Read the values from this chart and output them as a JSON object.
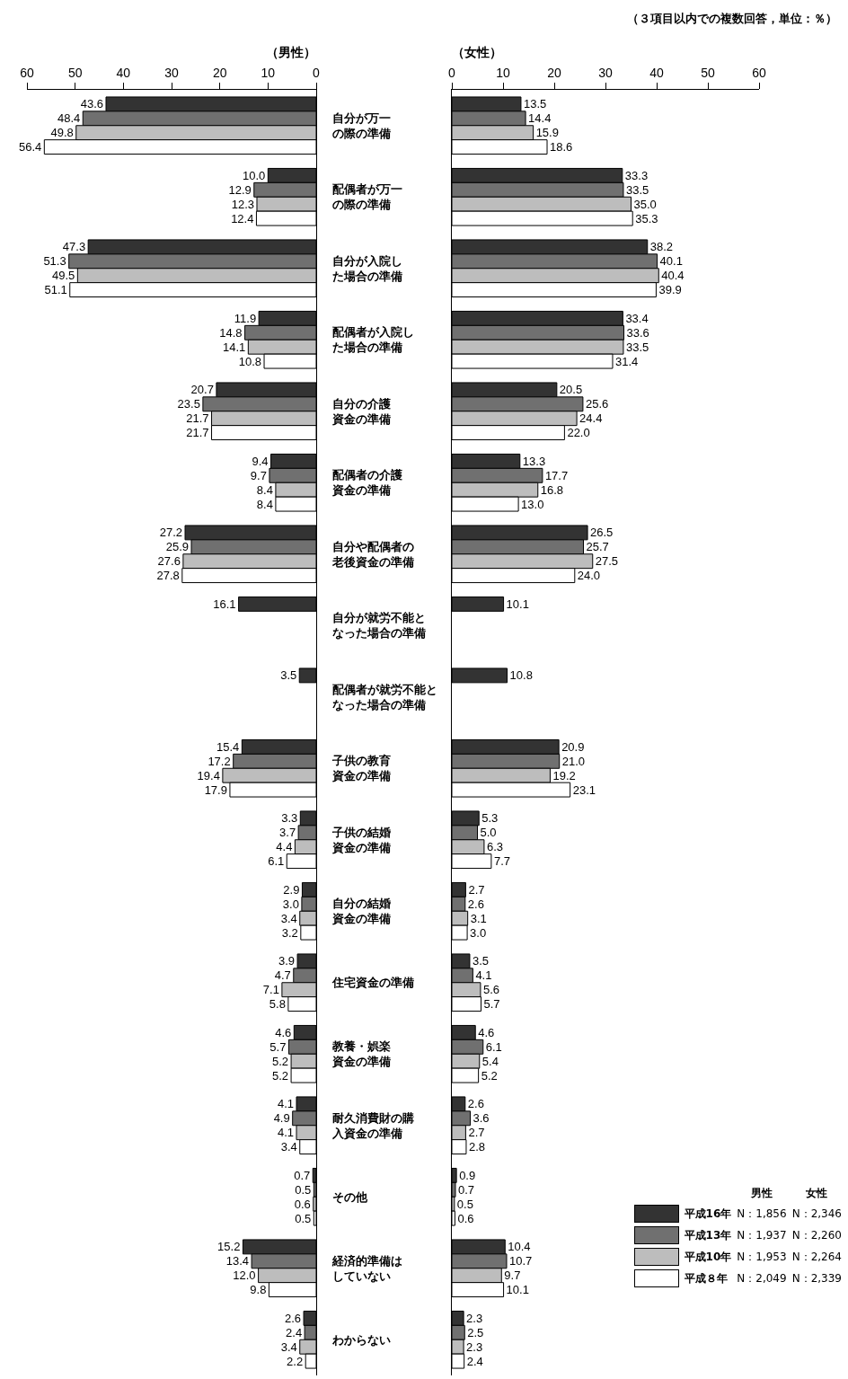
{
  "chart_data": [
    {
      "type": "bar",
      "orientation": "horizontal",
      "title": "（男性）",
      "xlim": [
        60,
        0
      ],
      "xticks": [
        60,
        50,
        40,
        30,
        20,
        10,
        0
      ],
      "grid": false,
      "legend": false,
      "categories": [
        "自分が万一の際の準備",
        "配偶者が万一の際の準備",
        "自分が入院した場合の準備",
        "配偶者が入院した場合の準備",
        "自分の介護資金の準備",
        "配偶者の介護資金の準備",
        "自分や配偶者の老後資金の準備",
        "自分が就労不能となった場合の準備",
        "配偶者が就労不能となった場合の準備",
        "子供の教育資金の準備",
        "子供の結婚資金の準備",
        "自分の結婚資金の準備",
        "住宅資金の準備",
        "教養・娯楽資金の準備",
        "耐久消費財の購入資金の準備",
        "その他",
        "経済的準備はしていない",
        "わからない"
      ],
      "series": [
        {
          "color": "#333333",
          "values": [
            43.6,
            10.0,
            47.3,
            11.9,
            20.7,
            9.4,
            27.2,
            16.1,
            3.5,
            15.4,
            3.3,
            2.9,
            3.9,
            4.6,
            4.1,
            0.7,
            15.2,
            2.6
          ],
          "value_labels": [
            "43.6",
            "10.0",
            "47.3",
            "11.9",
            "20.7",
            "9.4",
            "27.2",
            "16.1",
            "3.5",
            "15.4",
            "3.3",
            "2.9",
            "3.9",
            "4.6",
            "4.1",
            "0.7",
            "15.2",
            "2.6"
          ]
        },
        {
          "color": "#707070",
          "values": [
            48.4,
            12.9,
            51.3,
            14.8,
            23.5,
            9.7,
            25.9,
            null,
            null,
            17.2,
            3.7,
            3.0,
            4.7,
            5.7,
            4.9,
            0.5,
            13.4,
            2.4
          ],
          "value_labels": [
            "48.4",
            "12.9",
            "51.3",
            "14.8",
            "23.5",
            "9.7",
            "25.9",
            null,
            null,
            "17.2",
            "3.7",
            "3.0",
            "4.7",
            "5.7",
            "4.9",
            "0.5",
            "13.4",
            "2.4"
          ]
        },
        {
          "color": "#bdbdbd",
          "values": [
            49.8,
            12.3,
            49.5,
            14.1,
            21.7,
            8.4,
            27.6,
            null,
            null,
            19.4,
            4.4,
            3.4,
            7.1,
            5.2,
            4.1,
            0.6,
            12.0,
            3.4
          ],
          "value_labels": [
            "49.8",
            "12.3",
            "49.5",
            "14.1",
            "21.7",
            "8.4",
            "27.6",
            null,
            null,
            "19.4",
            "4.4",
            "3.4",
            "7.1",
            "5.2",
            "4.1",
            "0.6",
            "12.0",
            "3.4"
          ]
        },
        {
          "color": "#ffffff",
          "values": [
            56.4,
            12.4,
            51.1,
            10.8,
            21.7,
            8.4,
            27.8,
            null,
            null,
            17.9,
            6.1,
            3.2,
            5.8,
            5.2,
            3.4,
            0.5,
            9.8,
            2.2
          ],
          "value_labels": [
            "56.4",
            "12.4",
            "51.1",
            "10.8",
            "21.7",
            "8.4",
            "27.8",
            null,
            null,
            "17.9",
            "6.1",
            "3.2",
            "5.8",
            "5.2",
            "3.4",
            "0.5",
            "9.8",
            "2.2"
          ]
        }
      ]
    },
    {
      "type": "bar",
      "orientation": "horizontal",
      "title": "（女性）",
      "xlim": [
        0,
        60
      ],
      "xticks": [
        0,
        10,
        20,
        30,
        40,
        50,
        60
      ],
      "grid": false,
      "legend": "bottom right",
      "tick_labels": "x",
      "categories": [
        "自分が万一の際の準備",
        "配偶者が万一の際の準備",
        "自分が入院した場合の準備",
        "配偶者が入院した場合の準備",
        "自分の介護資金の準備",
        "配偶者の介護資金の準備",
        "自分や配偶者の老後資金の準備",
        "自分が就労不能となった場合の準備",
        "配偶者が就労不能となった場合の準備",
        "子供の教育資金の準備",
        "子供の結婚資金の準備",
        "自分の結婚資金の準備",
        "住宅資金の準備",
        "教養・娯楽資金の準備",
        "耐久消費財の購入資金の準備",
        "その他",
        "経済的準備はしていない",
        "わからない"
      ],
      "annotations": [
        "（３項目以内での複数回答，単位：％）",
        "男性",
        "女性",
        "N：1,856",
        "N：2,346",
        "N：1,937",
        "N：2,260",
        "N：1,953",
        "N：2,264",
        "N：2,049",
        "N：2,339"
      ],
      "series": [
        {
          "name": "平成16年",
          "color": "#333333",
          "values": [
            13.5,
            33.3,
            38.2,
            33.4,
            20.5,
            13.3,
            26.5,
            10.1,
            10.8,
            20.9,
            5.3,
            2.7,
            3.5,
            4.6,
            2.6,
            0.9,
            10.4,
            2.3
          ],
          "value_labels": [
            "13.5",
            "33.3",
            "38.2",
            "33.4",
            "20.5",
            "13.3",
            "26.5",
            "10.1",
            "10.8",
            "20.9",
            "5.3",
            "2.7",
            "3.5",
            "4.6",
            "2.6",
            "0.9",
            "10.4",
            "2.3"
          ]
        },
        {
          "name": "平成13年",
          "color": "#707070",
          "values": [
            14.4,
            33.5,
            40.1,
            33.6,
            25.6,
            17.7,
            25.7,
            null,
            null,
            21.0,
            5.0,
            2.6,
            4.1,
            6.1,
            3.6,
            0.7,
            10.7,
            2.5
          ],
          "value_labels": [
            "14.4",
            "33.5",
            "40.1",
            "33.6",
            "25.6",
            "17.7",
            "25.7",
            null,
            null,
            "21.0",
            "5.0",
            "2.6",
            "4.1",
            "6.1",
            "3.6",
            "0.7",
            "10.7",
            "2.5"
          ]
        },
        {
          "name": "平成10年",
          "color": "#bdbdbd",
          "values": [
            15.9,
            35.0,
            40.4,
            33.5,
            24.4,
            16.8,
            27.5,
            null,
            null,
            19.2,
            6.3,
            3.1,
            5.6,
            5.4,
            2.7,
            0.5,
            9.7,
            2.3
          ],
          "value_labels": [
            "15.9",
            "35.0",
            "40.4",
            "33.5",
            "24.4",
            "16.8",
            "27.5",
            null,
            null,
            "19.2",
            "6.3",
            "3.1",
            "5.6",
            "5.4",
            "2.7",
            "0.5",
            "9.7",
            "2.3"
          ]
        },
        {
          "name": "平成８年",
          "color": "#ffffff",
          "values": [
            18.6,
            35.3,
            39.9,
            31.4,
            22.0,
            13.0,
            24.0,
            null,
            null,
            23.1,
            7.7,
            3.0,
            5.7,
            5.2,
            2.8,
            0.6,
            10.1,
            2.4
          ],
          "value_labels": [
            "18.6",
            "35.3",
            "39.9",
            "31.4",
            "22.0",
            "13.0",
            "24.0",
            null,
            null,
            "23.1",
            "7.7",
            "3.0",
            "5.7",
            "5.2",
            "2.8",
            "0.6",
            "10.1",
            "2.4"
          ]
        }
      ]
    }
  ]
}
